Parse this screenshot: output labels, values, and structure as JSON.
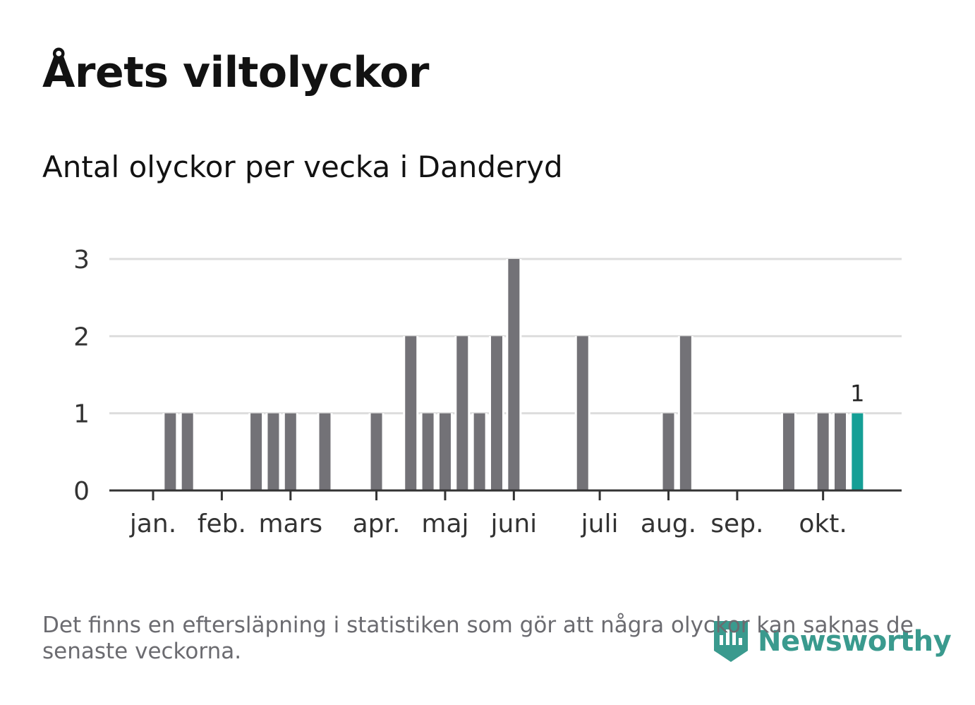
{
  "chart_data": {
    "type": "bar",
    "title": "Årets viltolyckor",
    "subtitle": "Antal olyckor per vecka i Danderyd",
    "xlabel": "",
    "ylabel": "",
    "ylim": [
      0,
      3
    ],
    "y_ticks": [
      "0",
      "1",
      "2",
      "3"
    ],
    "x_ticks": [
      {
        "label": "jan.",
        "week": 1
      },
      {
        "label": "feb.",
        "week": 5
      },
      {
        "label": "mars",
        "week": 9
      },
      {
        "label": "apr.",
        "week": 14
      },
      {
        "label": "maj",
        "week": 18
      },
      {
        "label": "juni",
        "week": 22
      },
      {
        "label": "juli",
        "week": 27
      },
      {
        "label": "aug.",
        "week": 31
      },
      {
        "label": "sep.",
        "week": 35
      },
      {
        "label": "okt.",
        "week": 40
      }
    ],
    "weeks": [
      1,
      2,
      3,
      4,
      5,
      6,
      7,
      8,
      9,
      10,
      11,
      12,
      13,
      14,
      15,
      16,
      17,
      18,
      19,
      20,
      21,
      22,
      23,
      24,
      25,
      26,
      27,
      28,
      29,
      30,
      31,
      32,
      33,
      34,
      35,
      36,
      37,
      38,
      39,
      40,
      41,
      42
    ],
    "values": [
      0,
      1,
      1,
      0,
      0,
      0,
      1,
      1,
      1,
      0,
      1,
      0,
      0,
      1,
      0,
      2,
      1,
      1,
      2,
      1,
      2,
      3,
      0,
      0,
      0,
      2,
      0,
      0,
      0,
      0,
      1,
      2,
      0,
      0,
      0,
      0,
      0,
      1,
      0,
      1,
      1,
      1
    ],
    "highlight_index": 41,
    "highlight_label": "1",
    "colors": {
      "bar": "#737277",
      "highlight": "#159f96",
      "grid": "#dddddd",
      "axis": "#333333"
    }
  },
  "footnote": "Det finns en eftersläpning i statistiken som gör att några olyckor kan saknas de senaste veckorna.",
  "logo": {
    "text": "Newsworthy",
    "icon": "newsworthy-logo-icon"
  }
}
